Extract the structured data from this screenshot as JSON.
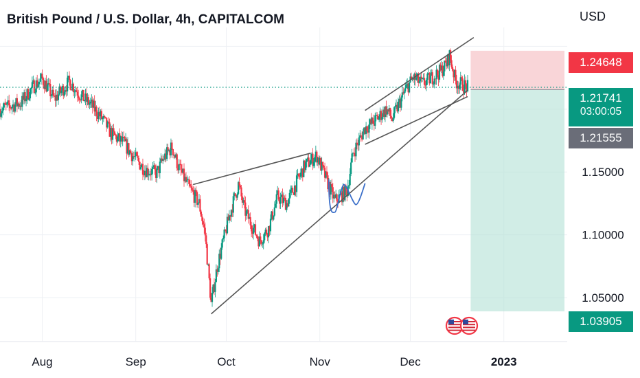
{
  "header": {
    "title": "British Pound / U.S. Dollar, 4h, CAPITALCOM",
    "currency": "USD"
  },
  "badges": {
    "current_price": "1.21741",
    "countdown": "03:00:05",
    "upper_level": "1.24648",
    "entry_level": "1.21555",
    "lower_level": "1.03905"
  },
  "colors": {
    "up": "#089981",
    "down": "#f23645",
    "target_zone": "#f7c7cb",
    "stop_zone": "#b8e4d8",
    "trendline": "#555555",
    "pattern": "#3b6fc9",
    "grid": "#eef0f4"
  },
  "icons": {
    "event_markers": "us-flag-icon"
  },
  "chart_data": {
    "type": "candlestick",
    "title": "British Pound / U.S. Dollar, 4h, CAPITALCOM",
    "xlabel": "",
    "ylabel": "",
    "x_ticks": [
      "Aug",
      "Sep",
      "Oct",
      "Nov",
      "Dec",
      "2023"
    ],
    "y_ticks": [
      "1.05000",
      "1.10000",
      "1.15000"
    ],
    "y_tick_values": [
      1.05,
      1.1,
      1.15
    ],
    "ylim": [
      1.015,
      1.265
    ],
    "xlim": [
      "2022-07-18",
      "2023-01-22"
    ],
    "grid": true,
    "current_price": 1.21741,
    "trade_levels": {
      "upper": 1.24648,
      "entry": 1.21555,
      "lower": 1.03905
    },
    "price_path": [
      [
        "2022-07-18",
        1.2
      ],
      [
        "2022-07-25",
        1.205
      ],
      [
        "2022-07-29",
        1.218
      ],
      [
        "2022-08-01",
        1.224
      ],
      [
        "2022-08-05",
        1.208
      ],
      [
        "2022-08-10",
        1.222
      ],
      [
        "2022-08-14",
        1.21
      ],
      [
        "2022-08-17",
        1.204
      ],
      [
        "2022-08-21",
        1.192
      ],
      [
        "2022-08-24",
        1.18
      ],
      [
        "2022-08-28",
        1.173
      ],
      [
        "2022-08-31",
        1.163
      ],
      [
        "2022-09-04",
        1.152
      ],
      [
        "2022-09-08",
        1.149
      ],
      [
        "2022-09-10",
        1.16
      ],
      [
        "2022-09-13",
        1.17
      ],
      [
        "2022-09-15",
        1.155
      ],
      [
        "2022-09-18",
        1.14
      ],
      [
        "2022-09-22",
        1.125
      ],
      [
        "2022-09-24",
        1.1
      ],
      [
        "2022-09-26",
        1.045
      ],
      [
        "2022-09-28",
        1.075
      ],
      [
        "2022-10-02",
        1.115
      ],
      [
        "2022-10-05",
        1.14
      ],
      [
        "2022-10-07",
        1.12
      ],
      [
        "2022-10-12",
        1.095
      ],
      [
        "2022-10-15",
        1.105
      ],
      [
        "2022-10-18",
        1.13
      ],
      [
        "2022-10-21",
        1.125
      ],
      [
        "2022-10-24",
        1.14
      ],
      [
        "2022-10-27",
        1.155
      ],
      [
        "2022-10-31",
        1.163
      ],
      [
        "2022-11-03",
        1.145
      ],
      [
        "2022-11-06",
        1.127
      ],
      [
        "2022-11-10",
        1.135
      ],
      [
        "2022-11-12",
        1.165
      ],
      [
        "2022-11-16",
        1.185
      ],
      [
        "2022-11-19",
        1.19
      ],
      [
        "2022-11-23",
        1.2
      ],
      [
        "2022-11-25",
        1.192
      ],
      [
        "2022-11-27",
        1.203
      ],
      [
        "2022-11-30",
        1.218
      ],
      [
        "2022-12-02",
        1.225
      ],
      [
        "2022-12-05",
        1.22
      ],
      [
        "2022-12-08",
        1.225
      ],
      [
        "2022-12-11",
        1.23
      ],
      [
        "2022-12-13",
        1.236
      ],
      [
        "2022-12-14",
        1.243
      ],
      [
        "2022-12-16",
        1.222
      ],
      [
        "2022-12-20",
        1.2174
      ]
    ],
    "annotations": [
      {
        "type": "trendline",
        "from": [
          "2022-09-26",
          1.037
        ],
        "to": [
          "2022-12-20",
          1.215
        ]
      },
      {
        "type": "trendline",
        "from": [
          "2022-09-20",
          1.14
        ],
        "to": [
          "2022-10-29",
          1.165
        ]
      },
      {
        "type": "trendline",
        "from": [
          "2022-11-16",
          1.172
        ],
        "to": [
          "2022-12-20",
          1.21
        ]
      },
      {
        "type": "trendline",
        "from": [
          "2022-11-16",
          1.199
        ],
        "to": [
          "2022-12-22",
          1.257
        ]
      },
      {
        "type": "drawn_pattern",
        "points": [
          [
            "2022-11-04",
            1.144
          ],
          [
            "2022-11-06",
            1.118
          ],
          [
            "2022-11-09",
            1.14
          ],
          [
            "2022-11-13",
            1.124
          ],
          [
            "2022-11-16",
            1.141
          ]
        ]
      }
    ]
  }
}
